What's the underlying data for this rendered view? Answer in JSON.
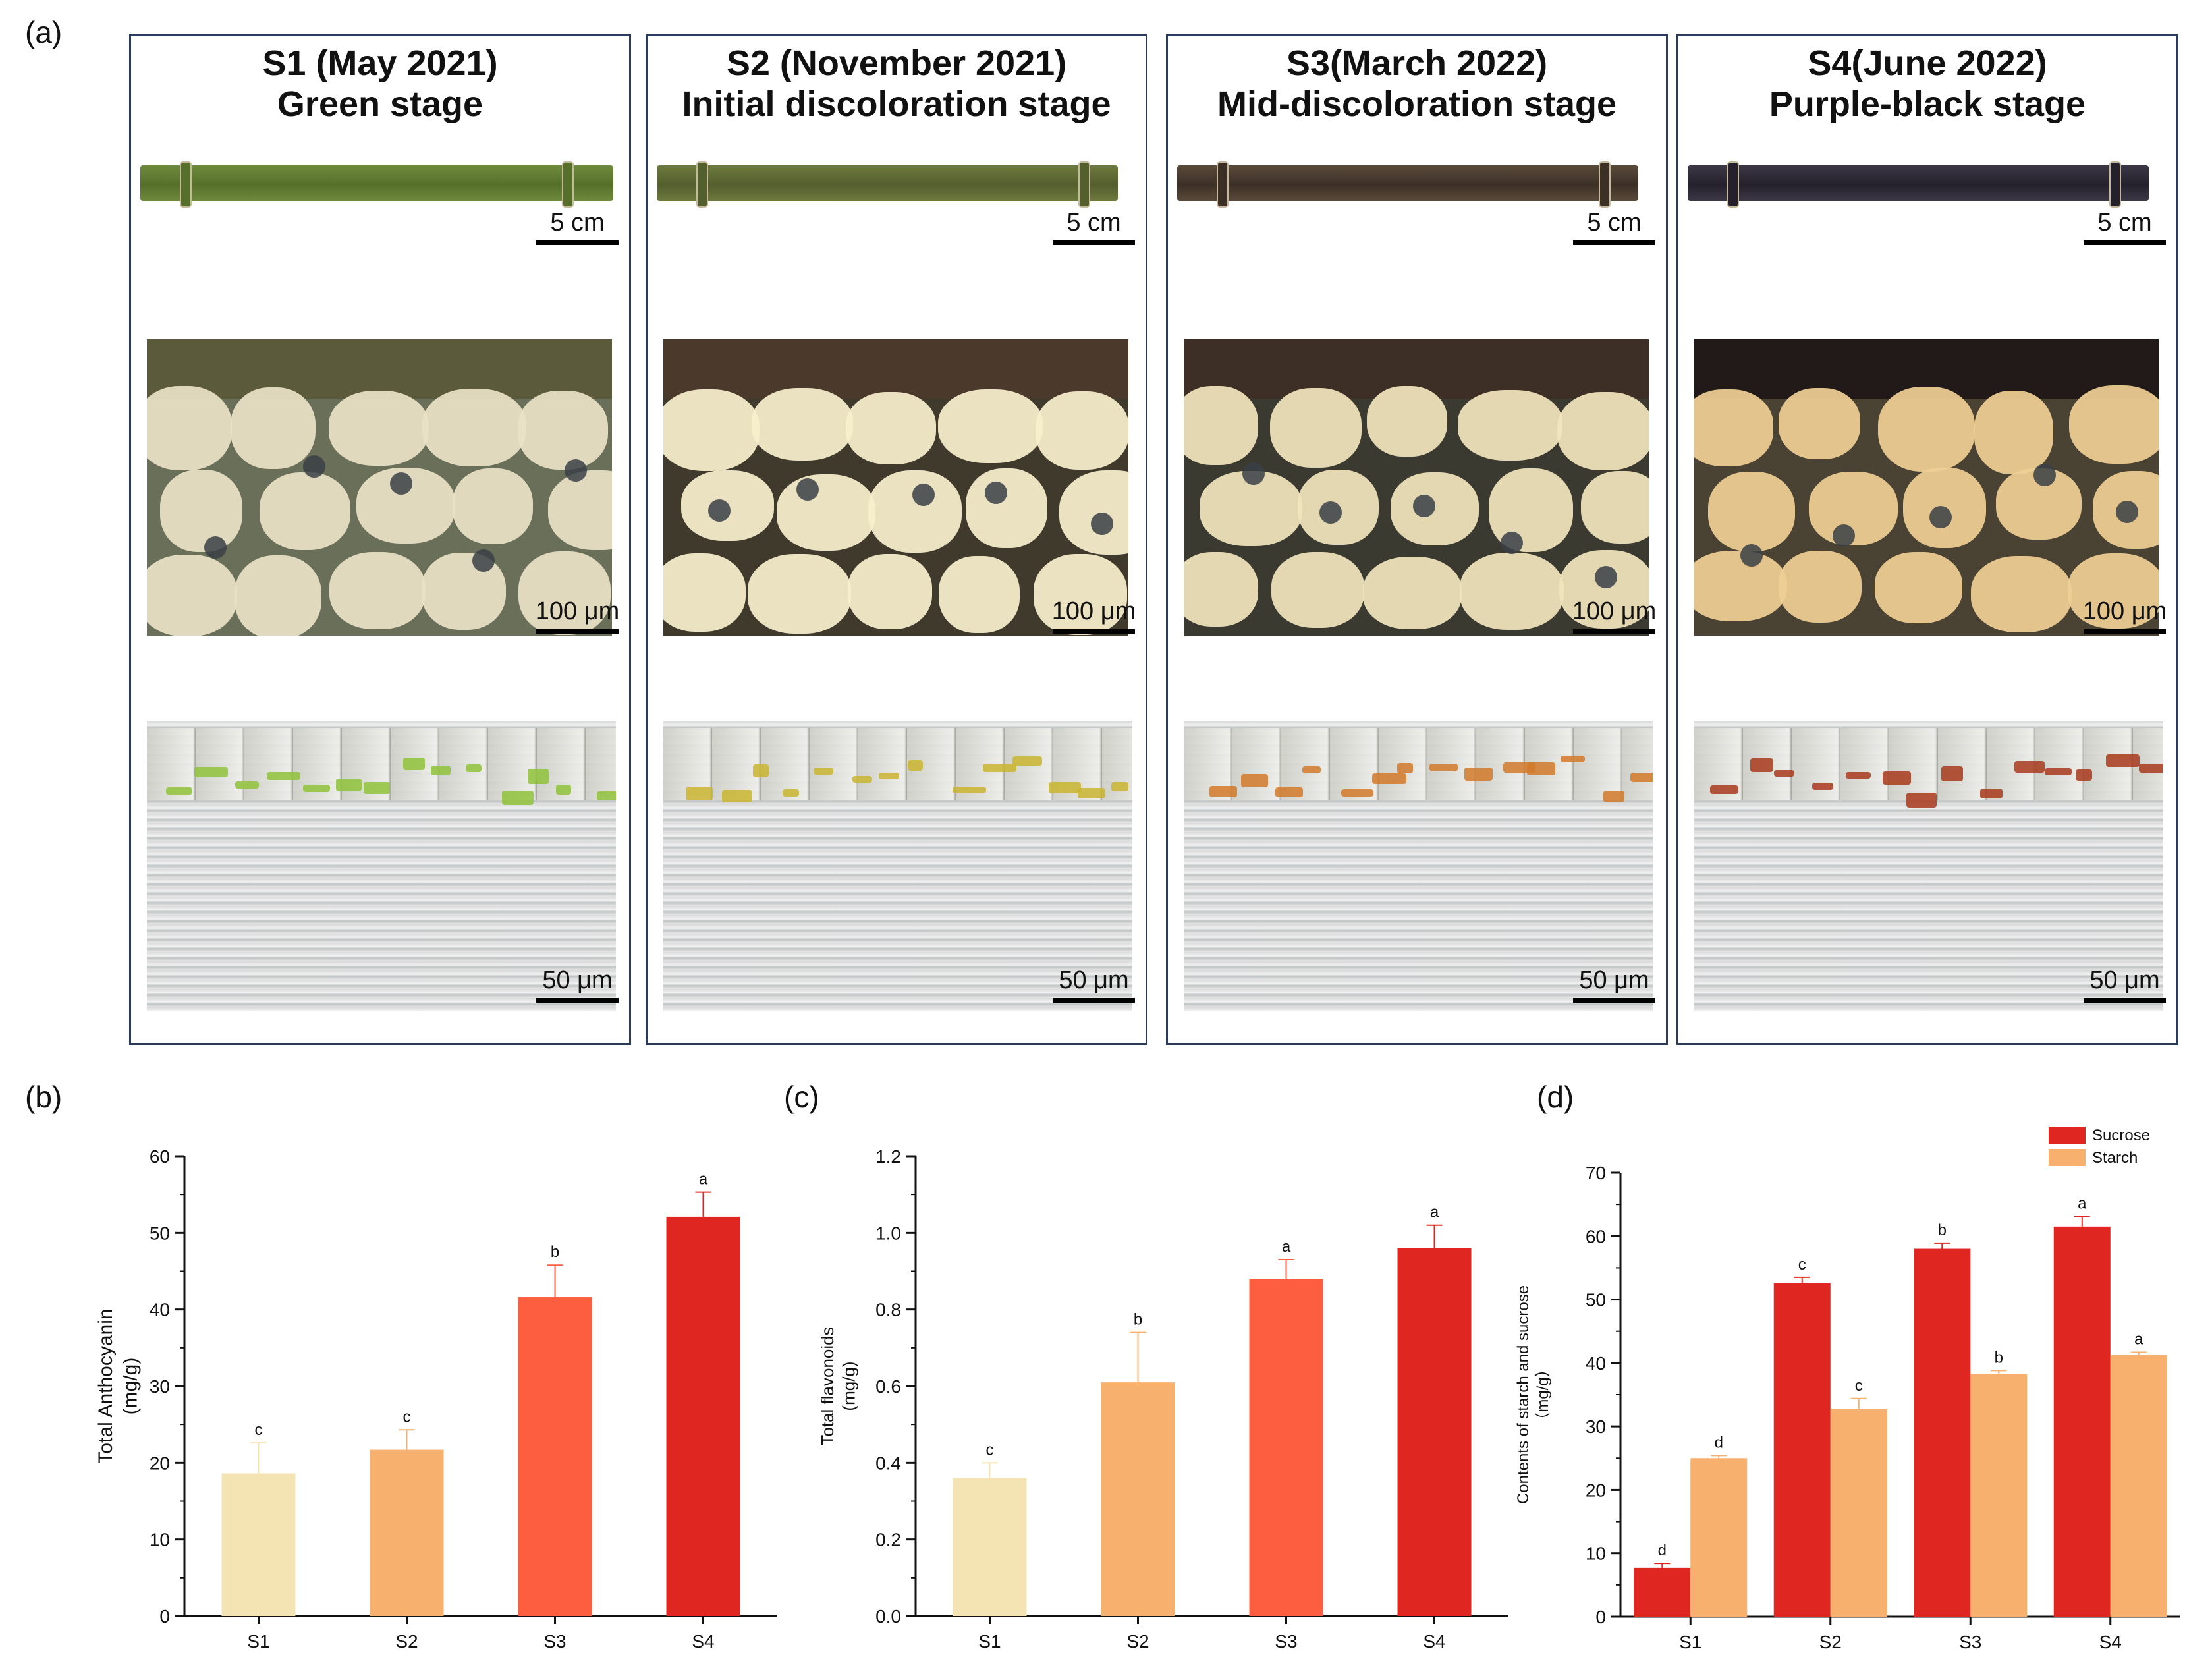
{
  "panel_labels": {
    "a": "(a)",
    "b": "(b)",
    "c": "(c)",
    "d": "(d)"
  },
  "stages": [
    {
      "title_line1": "S1 (May 2021)",
      "title_line2": "Green stage",
      "scale_culm": "5 cm",
      "scale_section": "100 μm",
      "scale_micro": "50 μm",
      "culm_color": "#6e8a3c",
      "culm_dark": "#56702b",
      "rind_color": "#5b5a3a",
      "cell_color": "#e9e1c6",
      "wall_color": "#6a6f5a",
      "micro_accent": "#8fc23a"
    },
    {
      "title_line1": "S2 (November 2021)",
      "title_line2": "Initial discoloration stage",
      "scale_culm": "5 cm",
      "scale_section": "100 μm",
      "scale_micro": "50 μm",
      "culm_color": "#6d7a3e",
      "culm_dark": "#545f2e",
      "rind_color": "#4b3a2c",
      "cell_color": "#f8efcc",
      "wall_color": "#3f3a2c",
      "micro_accent": "#c9b530"
    },
    {
      "title_line1": "S3(March 2022)",
      "title_line2": "Mid-discoloration stage",
      "scale_culm": "5 cm",
      "scale_section": "100 μm",
      "scale_micro": "50 μm",
      "culm_color": "#5a4a3a",
      "culm_dark": "#3c3026",
      "rind_color": "#3e2f26",
      "cell_color": "#f1e4bc",
      "wall_color": "#3b3a30",
      "micro_accent": "#d17a2a"
    },
    {
      "title_line1": "S4(June 2022)",
      "title_line2": "Purple-black  stage",
      "scale_culm": "5 cm",
      "scale_section": "100 μm",
      "scale_micro": "50 μm",
      "culm_color": "#3c3846",
      "culm_dark": "#24212c",
      "rind_color": "#221a18",
      "cell_color": "#efcf94",
      "wall_color": "#4a4232",
      "micro_accent": "#a83a1c"
    }
  ],
  "chart_data": [
    {
      "type": "bar",
      "panel": "(b)",
      "categories": [
        "S1",
        "S2",
        "S3",
        "S4"
      ],
      "values": [
        18.6,
        21.7,
        41.6,
        52.1
      ],
      "errors": [
        4.0,
        2.6,
        4.2,
        3.2
      ],
      "letters": [
        "c",
        "c",
        "b",
        "a"
      ],
      "colors": [
        "#f5e4b3",
        "#f8b06e",
        "#fd5e3f",
        "#df2620"
      ],
      "ylabel_line1": "Total Anthocyanin",
      "ylabel_line2": "(mg/g)",
      "ylim": [
        0,
        60
      ],
      "yticks": [
        "0",
        "10",
        "20",
        "30",
        "40",
        "50",
        "60"
      ]
    },
    {
      "type": "bar",
      "panel": "(c)",
      "categories": [
        "S1",
        "S2",
        "S3",
        "S4"
      ],
      "values": [
        0.36,
        0.61,
        0.88,
        0.96
      ],
      "errors": [
        0.04,
        0.13,
        0.05,
        0.06
      ],
      "letters": [
        "c",
        "b",
        "a",
        "a"
      ],
      "colors": [
        "#f5e4b3",
        "#f8b06e",
        "#fd5e3f",
        "#df2620"
      ],
      "ylabel_line1": "Total flavonoids",
      "ylabel_line2": "(mg/g)",
      "ylim": [
        0,
        1.2
      ],
      "yticks": [
        "0.0",
        "0.2",
        "0.4",
        "0.6",
        "0.8",
        "1.0",
        "1.2"
      ]
    },
    {
      "type": "bar",
      "panel": "(d)",
      "categories": [
        "S1",
        "S2",
        "S3",
        "S4"
      ],
      "series": [
        {
          "name": "Sucrose",
          "color": "#df2620",
          "values": [
            7.7,
            52.6,
            58.0,
            61.5
          ],
          "errors": [
            0.7,
            0.9,
            0.9,
            1.6
          ],
          "letters": [
            "d",
            "c",
            "b",
            "a"
          ]
        },
        {
          "name": "Starch",
          "color": "#f8b06e",
          "values": [
            25.0,
            32.8,
            38.3,
            41.3
          ],
          "errors": [
            0.4,
            1.6,
            0.5,
            0.4
          ],
          "letters": [
            "d",
            "c",
            "b",
            "a"
          ]
        }
      ],
      "ylabel_line1": "Contents of starch and sucrose",
      "ylabel_line2": "（mg/g）",
      "ylim": [
        0,
        70
      ],
      "yticks": [
        "0",
        "10",
        "20",
        "30",
        "40",
        "50",
        "60",
        "70"
      ]
    }
  ]
}
